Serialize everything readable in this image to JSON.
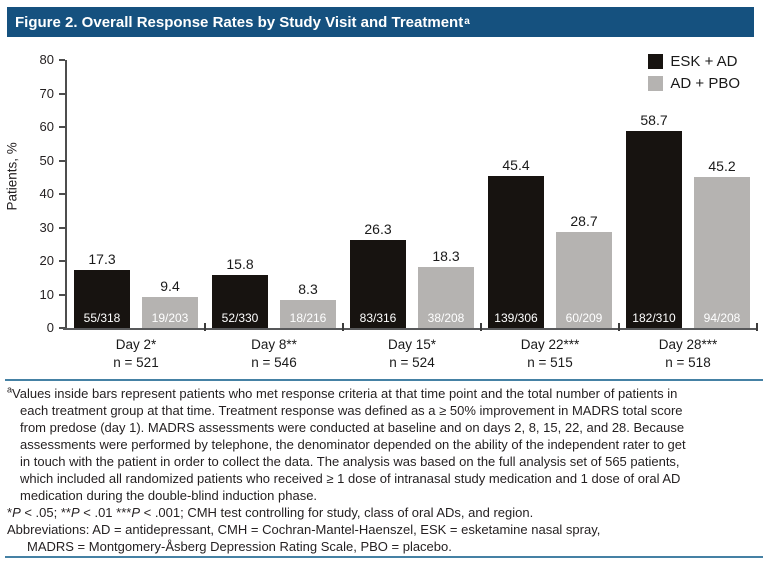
{
  "figure": {
    "title": "Figure 2. Overall Response Rates by Study Visit and Treatment",
    "title_superscript": "a"
  },
  "chart_data": {
    "type": "bar",
    "title": "Overall Response Rates by Study Visit and Treatment",
    "ylabel": "Patients, %",
    "xlabel": "",
    "ylim": [
      0,
      80
    ],
    "yticks": [
      0,
      10,
      20,
      30,
      40,
      50,
      60,
      70,
      80
    ],
    "grid": false,
    "legend_position": "top-right",
    "categories": [
      "Day 2*",
      "Day 8**",
      "Day 15*",
      "Day 22***",
      "Day 28***"
    ],
    "category_sublabels": [
      "n = 521",
      "n = 546",
      "n = 524",
      "n = 515",
      "n = 518"
    ],
    "series": [
      {
        "name": "ESK + AD",
        "color": "#171310",
        "values": [
          17.3,
          15.8,
          26.3,
          45.4,
          58.7
        ],
        "bar_inner_labels": [
          "55/318",
          "52/330",
          "83/316",
          "139/306",
          "182/310"
        ]
      },
      {
        "name": "AD + PBO",
        "color": "#b5b3b1",
        "values": [
          9.4,
          8.3,
          18.3,
          28.7,
          45.2
        ],
        "bar_inner_labels": [
          "19/203",
          "18/216",
          "38/208",
          "60/209",
          "94/208"
        ]
      }
    ]
  },
  "footnotes": {
    "superscript": "a",
    "body_lines": [
      "Values inside bars represent patients who met response criteria at that time point and the total number of patients in",
      "each treatment group at that time. Treatment response was defined as a ≥ 50% improvement in MADRS total score",
      "from predose (day 1). MADRS assessments were conducted at baseline and on days 2, 8, 15, 22, and 28. Because",
      "assessments were performed by telephone, the denominator depended on the ability of the independent rater to get",
      "in touch with the patient in order to collect the data. The analysis was based on the full analysis set of 565 patients,",
      "which included all randomized patients who received ≥ 1 dose of intranasal study medication and 1 dose of oral AD",
      "medication during the double-blind induction phase."
    ],
    "pvalue_line": "*P < .05; **P < .01 ***P < .001; CMH test controlling for study, class of oral ADs, and region.",
    "abbreviation_lines": [
      "Abbreviations: AD = antidepressant, CMH = Cochran-Mantel-Haenszel, ESK = esketamine nasal spray,",
      "MADRS = Montgomery-Åsberg Depression Rating Scale, PBO = placebo."
    ]
  },
  "colors": {
    "title_bar": "#15517f",
    "rule": "#4581a4",
    "axis": "#4d4d4d",
    "baseline": "#58595b",
    "text": "#231f20",
    "bar_value_label": "#1a1a1a",
    "bar_inner_label": "#ffffff"
  }
}
